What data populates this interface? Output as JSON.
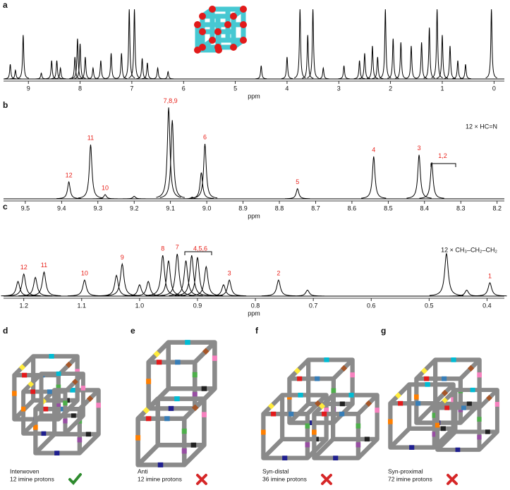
{
  "chart_data": [
    {
      "type": "spectrum",
      "title": "a",
      "x_label": "ppm",
      "color": "#000000",
      "xlim": [
        9.48,
        -0.2
      ],
      "xticks": [
        9,
        8,
        7,
        6,
        5,
        4,
        3,
        2,
        1,
        0
      ],
      "ylim": [
        0,
        100
      ],
      "x": [
        9.35,
        9.25,
        9.1,
        8.75,
        8.55,
        8.45,
        8.38,
        8.1,
        8.05,
        8.0,
        7.9,
        7.75,
        7.6,
        7.4,
        7.2,
        7.05,
        6.95,
        6.8,
        6.7,
        6.5,
        6.3,
        4.5,
        4.0,
        3.75,
        3.6,
        3.5,
        3.3,
        2.9,
        2.6,
        2.5,
        2.35,
        2.25,
        2.1,
        1.95,
        1.8,
        1.6,
        1.4,
        1.25,
        1.1,
        1.0,
        0.85,
        0.7,
        0.55,
        0.05
      ],
      "values": [
        20,
        12,
        60,
        8,
        25,
        25,
        15,
        30,
        55,
        48,
        30,
        15,
        25,
        35,
        35,
        95,
        95,
        28,
        22,
        15,
        10,
        18,
        30,
        95,
        60,
        95,
        15,
        18,
        25,
        35,
        45,
        30,
        95,
        55,
        50,
        45,
        50,
        70,
        95,
        60,
        45,
        25,
        20,
        95
      ]
    },
    {
      "type": "spectrum",
      "title": "b",
      "x_label": "ppm",
      "color": "#000000",
      "annotation_color": "#e8221b",
      "note": "12 × HC=N",
      "xlim": [
        9.56,
        8.18
      ],
      "xticks": [
        9.5,
        9.4,
        9.3,
        9.2,
        9.1,
        {
          "value": 9,
          "label": "9.0"
        },
        8.9,
        8.8,
        8.7,
        8.6,
        8.5,
        8.4,
        8.3,
        8.2
      ],
      "ylim": [
        0,
        110
      ],
      "x": [
        9.38,
        9.32,
        9.28,
        9.2,
        9.105,
        9.095,
        9.04,
        9.015,
        9.005,
        8.75,
        8.54,
        8.415,
        8.38
      ],
      "values": [
        20,
        64,
        5,
        3,
        108,
        93,
        2,
        31,
        65,
        12,
        50,
        52,
        43
      ],
      "annotations": [
        {
          "text": "12",
          "x": 9.38
        },
        {
          "text": "11",
          "x": 9.32
        },
        {
          "text": "10",
          "x": 9.28
        },
        {
          "text": "7,8,9",
          "x": 9.1
        },
        {
          "text": "6",
          "x": 9.005
        },
        {
          "text": "5",
          "x": 8.75
        },
        {
          "text": "4",
          "x": 8.54
        },
        {
          "text": "3",
          "x": 8.415
        },
        {
          "text": "1,2",
          "x": 8.35
        }
      ]
    },
    {
      "type": "spectrum",
      "title": "c",
      "x_label": "ppm",
      "color": "#000000",
      "annotation_color": "#e8221b",
      "note": "12 × CH₃–CH₂–CH₂",
      "xlim": [
        1.235,
        0.37
      ],
      "xticks": [
        1.2,
        1.1,
        {
          "value": 1,
          "label": "1.0"
        },
        0.9,
        0.8,
        0.7,
        0.6,
        0.5,
        0.4
      ],
      "ylim": [
        0,
        100
      ],
      "x": [
        1.21,
        1.2,
        1.18,
        1.165,
        1.095,
        1.04,
        1.03,
        1.0,
        0.985,
        0.96,
        0.95,
        0.935,
        0.92,
        0.91,
        0.9,
        0.885,
        0.855,
        0.845,
        0.76,
        0.71,
        0.47,
        0.435,
        0.395
      ],
      "values": [
        22,
        33,
        28,
        36,
        24,
        31,
        48,
        17,
        22,
        61,
        53,
        63,
        53,
        61,
        58,
        44,
        17,
        24,
        24,
        9,
        64,
        9,
        20
      ],
      "annotations": [
        {
          "text": "12",
          "x": 1.2
        },
        {
          "text": "11",
          "x": 1.165
        },
        {
          "text": "10",
          "x": 1.095
        },
        {
          "text": "9",
          "x": 1.03
        },
        {
          "text": "8",
          "x": 0.96
        },
        {
          "text": "7",
          "x": 0.935
        },
        {
          "text": "4,5,6",
          "x": 0.895
        },
        {
          "text": "3",
          "x": 0.845
        },
        {
          "text": "2",
          "x": 0.76
        },
        {
          "text": "1",
          "x": 0.395
        }
      ]
    }
  ],
  "panels": [
    {
      "label": "d",
      "name": "Interwoven",
      "protons": "12 imine protons",
      "valid": true
    },
    {
      "label": "e",
      "name": "Anti",
      "protons": "12 imine protons",
      "valid": false
    },
    {
      "label": "f",
      "name": "Syn-distal",
      "protons": "36 imine protons",
      "valid": false
    },
    {
      "label": "g",
      "name": "Syn-proximal",
      "protons": "72 imine protons",
      "valid": false
    }
  ]
}
